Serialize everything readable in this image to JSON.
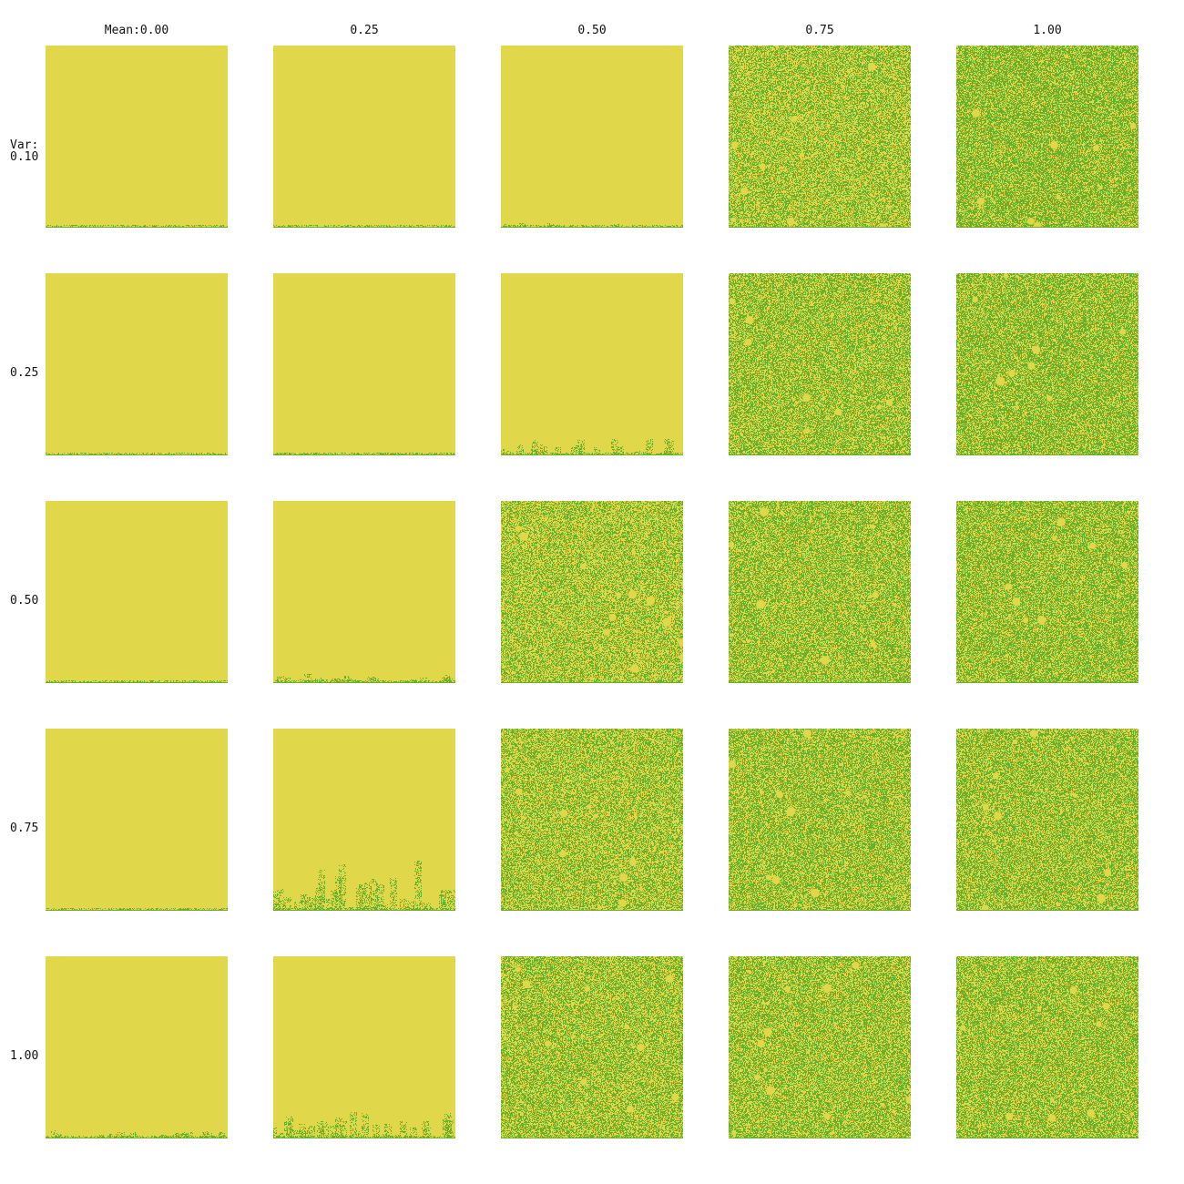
{
  "grid": {
    "col_header_prefix": "Mean:",
    "row_header_prefix": "Var:",
    "means": [
      "0.00",
      "0.25",
      "0.50",
      "0.75",
      "1.00"
    ],
    "vars": [
      "0.10",
      "0.25",
      "0.50",
      "0.75",
      "1.00"
    ],
    "colors": {
      "empty": "#e0d84a",
      "filled": "#6aae2a"
    }
  },
  "panels": [
    [
      {
        "fill": 0.0,
        "fringe": 0.01
      },
      {
        "fill": 0.0,
        "fringe": 0.01
      },
      {
        "fill": 0.0,
        "fringe": 0.03
      },
      {
        "fill": 0.5,
        "fringe": 0
      },
      {
        "fill": 0.62,
        "fringe": 0
      }
    ],
    [
      {
        "fill": 0.0,
        "fringe": 0.01
      },
      {
        "fill": 0.0,
        "fringe": 0.02
      },
      {
        "fill": 0.0,
        "fringe": 0.1
      },
      {
        "fill": 0.55,
        "fringe": 0
      },
      {
        "fill": 0.6,
        "fringe": 0
      }
    ],
    [
      {
        "fill": 0.0,
        "fringe": 0.01
      },
      {
        "fill": 0.0,
        "fringe": 0.06
      },
      {
        "fill": 0.47,
        "fringe": 0
      },
      {
        "fill": 0.55,
        "fringe": 0
      },
      {
        "fill": 0.58,
        "fringe": 0
      }
    ],
    [
      {
        "fill": 0.0,
        "fringe": 0.02
      },
      {
        "fill": 0.0,
        "fringe": 0.3
      },
      {
        "fill": 0.5,
        "fringe": 0
      },
      {
        "fill": 0.55,
        "fringe": 0
      },
      {
        "fill": 0.56,
        "fringe": 0
      }
    ],
    [
      {
        "fill": 0.0,
        "fringe": 0.05
      },
      {
        "fill": 0.0,
        "fringe": 0.18
      },
      {
        "fill": 0.52,
        "fringe": 0
      },
      {
        "fill": 0.55,
        "fringe": 0
      },
      {
        "fill": 0.56,
        "fringe": 0
      }
    ]
  ]
}
